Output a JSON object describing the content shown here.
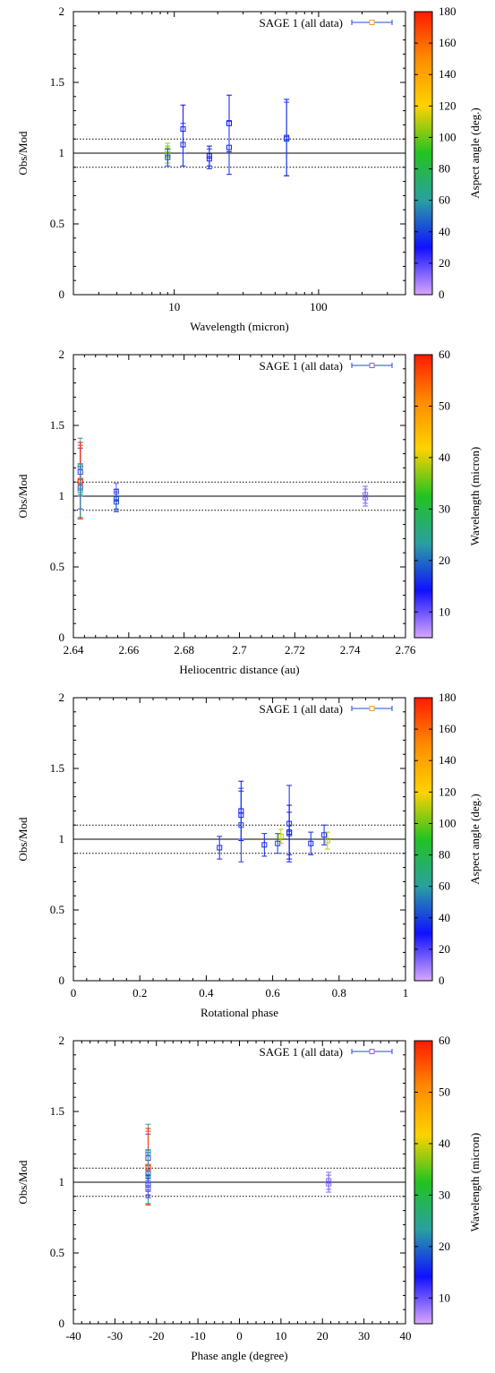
{
  "colors": {
    "gradient": [
      "#d8a6ff",
      "#1010ff",
      "#2aa0a0",
      "#22c322",
      "#ffd200",
      "#ff8c00",
      "#ff1a00"
    ],
    "ref_line": "#000000",
    "ref_dash": "#000000"
  },
  "chart_data": [
    {
      "type": "scatter",
      "title": "",
      "xlabel": "Wavelength (micron)",
      "ylabel": "Obs/Mod",
      "x_scale": "log",
      "xlim": [
        2,
        400
      ],
      "ylim": [
        0,
        2
      ],
      "x_ticks": [
        10,
        100
      ],
      "x_tick_labels": [
        "10",
        "100"
      ],
      "y_ticks": [
        0,
        0.5,
        1,
        1.5,
        2
      ],
      "y_tick_labels": [
        "0",
        "0.5",
        "1",
        "1.5",
        "2"
      ],
      "legend": "SAGE 1 (all data)",
      "legend_placement": "top-right",
      "legend_color": "#f0a020",
      "colorbar_label": "Aspect angle (deg.)",
      "colorbar_range": [
        0,
        180
      ],
      "colorbar_ticks": [
        0,
        20,
        40,
        60,
        80,
        100,
        120,
        140,
        160,
        180
      ],
      "colorbar_tick_labels": [
        "0",
        "20",
        "40",
        "60",
        "80",
        "100",
        "120",
        "140",
        "160",
        "180"
      ],
      "reference_lines": [
        1.0
      ],
      "band_lines": [
        0.9,
        1.1
      ],
      "points": [
        {
          "x": 9.0,
          "y": 1.02,
          "err": 0.05,
          "c": 110
        },
        {
          "x": 9.0,
          "y": 0.99,
          "err": 0.06,
          "c": 100
        },
        {
          "x": 9.0,
          "y": 0.97,
          "err": 0.06,
          "c": 40
        },
        {
          "x": 11.5,
          "y": 1.17,
          "err": 0.17,
          "c": 30
        },
        {
          "x": 11.5,
          "y": 1.06,
          "err": 0.15,
          "c": 35
        },
        {
          "x": 17.5,
          "y": 0.98,
          "err": 0.07,
          "c": 30
        },
        {
          "x": 17.5,
          "y": 0.96,
          "err": 0.07,
          "c": 35
        },
        {
          "x": 24.0,
          "y": 1.21,
          "err": 0.2,
          "c": 30
        },
        {
          "x": 24.0,
          "y": 1.04,
          "err": 0.19,
          "c": 35
        },
        {
          "x": 60.0,
          "y": 1.11,
          "err": 0.27,
          "c": 30
        },
        {
          "x": 60.0,
          "y": 1.1,
          "err": 0.26,
          "c": 40
        }
      ]
    },
    {
      "type": "scatter",
      "title": "",
      "xlabel": "Heliocentric distance (au)",
      "ylabel": "Obs/Mod",
      "x_scale": "linear",
      "xlim": [
        2.64,
        2.76
      ],
      "ylim": [
        0,
        2
      ],
      "x_ticks": [
        2.64,
        2.66,
        2.68,
        2.7,
        2.72,
        2.74,
        2.76
      ],
      "x_tick_labels": [
        "2.64",
        "2.66",
        "2.68",
        "2.7",
        "2.72",
        "2.74",
        "2.76"
      ],
      "y_ticks": [
        0,
        0.5,
        1,
        1.5,
        2
      ],
      "y_tick_labels": [
        "0",
        "0.5",
        "1",
        "1.5",
        "2"
      ],
      "legend": "SAGE 1 (all data)",
      "legend_placement": "top-right",
      "legend_color": "#8c5af0",
      "colorbar_label": "Wavelength (micron)",
      "colorbar_range": [
        5,
        60
      ],
      "colorbar_ticks": [
        10,
        20,
        30,
        40,
        50,
        60
      ],
      "colorbar_tick_labels": [
        "10",
        "20",
        "30",
        "40",
        "50",
        "60"
      ],
      "reference_lines": [
        1.0
      ],
      "band_lines": [
        0.9,
        1.1
      ],
      "points": [
        {
          "x": 2.6425,
          "y": 1.21,
          "err": 0.2,
          "c": 24
        },
        {
          "x": 2.6425,
          "y": 1.17,
          "err": 0.17,
          "c": 12
        },
        {
          "x": 2.6425,
          "y": 1.11,
          "err": 0.27,
          "c": 60
        },
        {
          "x": 2.6425,
          "y": 1.1,
          "err": 0.26,
          "c": 58
        },
        {
          "x": 2.6425,
          "y": 1.06,
          "err": 0.15,
          "c": 12
        },
        {
          "x": 2.6425,
          "y": 1.04,
          "err": 0.19,
          "c": 24
        },
        {
          "x": 2.6555,
          "y": 1.03,
          "err": 0.06,
          "c": 10
        },
        {
          "x": 2.6555,
          "y": 0.98,
          "err": 0.07,
          "c": 18
        },
        {
          "x": 2.6555,
          "y": 0.96,
          "err": 0.07,
          "c": 18
        },
        {
          "x": 2.7455,
          "y": 1.01,
          "err": 0.06,
          "c": 9
        },
        {
          "x": 2.7455,
          "y": 0.99,
          "err": 0.06,
          "c": 9
        }
      ]
    },
    {
      "type": "scatter",
      "title": "",
      "xlabel": "Rotational phase",
      "ylabel": "Obs/Mod",
      "x_scale": "linear",
      "xlim": [
        0,
        1
      ],
      "ylim": [
        0,
        2
      ],
      "x_ticks": [
        0,
        0.2,
        0.4,
        0.6,
        0.8,
        1
      ],
      "x_tick_labels": [
        "0",
        "0.2",
        "0.4",
        "0.6",
        "0.8",
        "1"
      ],
      "y_ticks": [
        0,
        0.5,
        1,
        1.5,
        2
      ],
      "y_tick_labels": [
        "0",
        "0.5",
        "1",
        "1.5",
        "2"
      ],
      "legend": "SAGE 1 (all data)",
      "legend_placement": "top-right",
      "legend_color": "#f0a020",
      "colorbar_label": "Aspect angle (deg.)",
      "colorbar_range": [
        0,
        180
      ],
      "colorbar_ticks": [
        0,
        20,
        40,
        60,
        80,
        100,
        120,
        140,
        160,
        180
      ],
      "colorbar_tick_labels": [
        "0",
        "20",
        "40",
        "60",
        "80",
        "100",
        "120",
        "140",
        "160",
        "180"
      ],
      "reference_lines": [
        1.0
      ],
      "band_lines": [
        0.9,
        1.1
      ],
      "points": [
        {
          "x": 0.44,
          "y": 0.94,
          "err": 0.08,
          "c": 35
        },
        {
          "x": 0.505,
          "y": 1.2,
          "err": 0.21,
          "c": 30
        },
        {
          "x": 0.505,
          "y": 1.17,
          "err": 0.17,
          "c": 32
        },
        {
          "x": 0.505,
          "y": 1.1,
          "err": 0.26,
          "c": 40
        },
        {
          "x": 0.575,
          "y": 0.96,
          "err": 0.08,
          "c": 35
        },
        {
          "x": 0.615,
          "y": 0.97,
          "err": 0.07,
          "c": 40
        },
        {
          "x": 0.625,
          "y": 1.02,
          "err": 0.05,
          "c": 110
        },
        {
          "x": 0.65,
          "y": 1.11,
          "err": 0.27,
          "c": 35
        },
        {
          "x": 0.65,
          "y": 1.05,
          "err": 0.19,
          "c": 30
        },
        {
          "x": 0.65,
          "y": 1.04,
          "err": 0.15,
          "c": 35
        },
        {
          "x": 0.715,
          "y": 0.97,
          "err": 0.08,
          "c": 35
        },
        {
          "x": 0.755,
          "y": 1.03,
          "err": 0.07,
          "c": 35
        },
        {
          "x": 0.765,
          "y": 0.99,
          "err": 0.06,
          "c": 110
        }
      ]
    },
    {
      "type": "scatter",
      "title": "",
      "xlabel": "Phase angle (degree)",
      "ylabel": "Obs/Mod",
      "x_scale": "linear",
      "xlim": [
        -40,
        40
      ],
      "ylim": [
        0,
        2
      ],
      "x_ticks": [
        -40,
        -30,
        -20,
        -10,
        0,
        10,
        20,
        30,
        40
      ],
      "x_tick_labels": [
        "-40",
        "-30",
        "-20",
        "-10",
        "0",
        "10",
        "20",
        "30",
        "40"
      ],
      "y_ticks": [
        0,
        0.5,
        1,
        1.5,
        2
      ],
      "y_tick_labels": [
        "0",
        "0.5",
        "1",
        "1.5",
        "2"
      ],
      "legend": "SAGE 1 (all data)",
      "legend_placement": "top-right",
      "legend_color": "#8c5af0",
      "colorbar_label": "Wavelength (micron)",
      "colorbar_range": [
        5,
        60
      ],
      "colorbar_ticks": [
        10,
        20,
        30,
        40,
        50,
        60
      ],
      "colorbar_tick_labels": [
        "10",
        "20",
        "30",
        "40",
        "50",
        "60"
      ],
      "reference_lines": [
        1.0
      ],
      "band_lines": [
        0.9,
        1.1
      ],
      "points": [
        {
          "x": -22,
          "y": 1.21,
          "err": 0.2,
          "c": 24
        },
        {
          "x": -22,
          "y": 1.17,
          "err": 0.17,
          "c": 12
        },
        {
          "x": -22,
          "y": 1.11,
          "err": 0.27,
          "c": 60
        },
        {
          "x": -22,
          "y": 1.1,
          "err": 0.26,
          "c": 58
        },
        {
          "x": -22,
          "y": 1.06,
          "err": 0.15,
          "c": 12
        },
        {
          "x": -22,
          "y": 1.04,
          "err": 0.19,
          "c": 24
        },
        {
          "x": -22,
          "y": 0.98,
          "err": 0.07,
          "c": 18
        },
        {
          "x": -22,
          "y": 0.96,
          "err": 0.07,
          "c": 18
        },
        {
          "x": -22,
          "y": 0.95,
          "err": 0.06,
          "c": 10
        },
        {
          "x": 21.5,
          "y": 1.01,
          "err": 0.06,
          "c": 9
        },
        {
          "x": 21.5,
          "y": 0.99,
          "err": 0.06,
          "c": 9
        }
      ]
    }
  ]
}
